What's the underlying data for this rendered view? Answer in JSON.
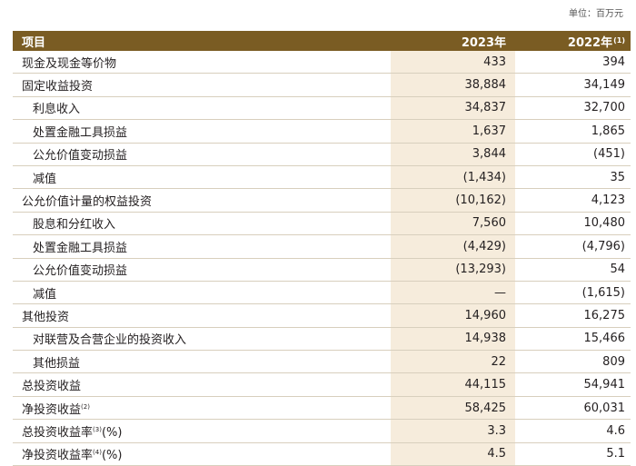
{
  "unit_label": "单位：百万元",
  "header": {
    "item": "项目",
    "y2023": "2023年",
    "y2022": "2022年",
    "y2022_note": "(1)"
  },
  "rows": [
    {
      "label": "现金及现金等价物",
      "note": "",
      "suffix": "",
      "y2023": "433",
      "y2022": "394"
    },
    {
      "label": "固定收益投资",
      "note": "",
      "suffix": "",
      "y2023": "38,884",
      "y2022": "34,149"
    },
    {
      "label": "利息收入",
      "note": "",
      "suffix": "",
      "y2023": "34,837",
      "y2022": "32,700"
    },
    {
      "label": "处置金融工具损益",
      "note": "",
      "suffix": "",
      "y2023": "1,637",
      "y2022": "1,865"
    },
    {
      "label": "公允价值变动损益",
      "note": "",
      "suffix": "",
      "y2023": "3,844",
      "y2022": "(451)"
    },
    {
      "label": "减值",
      "note": "",
      "suffix": "",
      "y2023": "(1,434)",
      "y2022": "35"
    },
    {
      "label": "公允价值计量的权益投资",
      "note": "",
      "suffix": "",
      "y2023": "(10,162)",
      "y2022": "4,123"
    },
    {
      "label": "股息和分红收入",
      "note": "",
      "suffix": "",
      "y2023": "7,560",
      "y2022": "10,480"
    },
    {
      "label": "处置金融工具损益",
      "note": "",
      "suffix": "",
      "y2023": "(4,429)",
      "y2022": "(4,796)"
    },
    {
      "label": "公允价值变动损益",
      "note": "",
      "suffix": "",
      "y2023": "(13,293)",
      "y2022": "54"
    },
    {
      "label": "减值",
      "note": "",
      "suffix": "",
      "y2023": "—",
      "y2022": "(1,615)"
    },
    {
      "label": "其他投资",
      "note": "",
      "suffix": "",
      "y2023": "14,960",
      "y2022": "16,275"
    },
    {
      "label": "对联营及合营企业的投资收入",
      "note": "",
      "suffix": "",
      "y2023": "14,938",
      "y2022": "15,466"
    },
    {
      "label": "其他损益",
      "note": "",
      "suffix": "",
      "y2023": "22",
      "y2022": "809"
    },
    {
      "label": "总投资收益",
      "note": "",
      "suffix": "",
      "y2023": "44,115",
      "y2022": "54,941"
    },
    {
      "label": "净投资收益",
      "note": "(2)",
      "suffix": "",
      "y2023": "58,425",
      "y2022": "60,031"
    },
    {
      "label": "总投资收益率",
      "note": "(3)",
      "suffix": "(%)",
      "y2023": "3.3",
      "y2022": "4.6"
    },
    {
      "label": "净投资收益率",
      "note": "(4)",
      "suffix": "(%)",
      "y2023": "4.5",
      "y2022": "5.1"
    }
  ]
}
